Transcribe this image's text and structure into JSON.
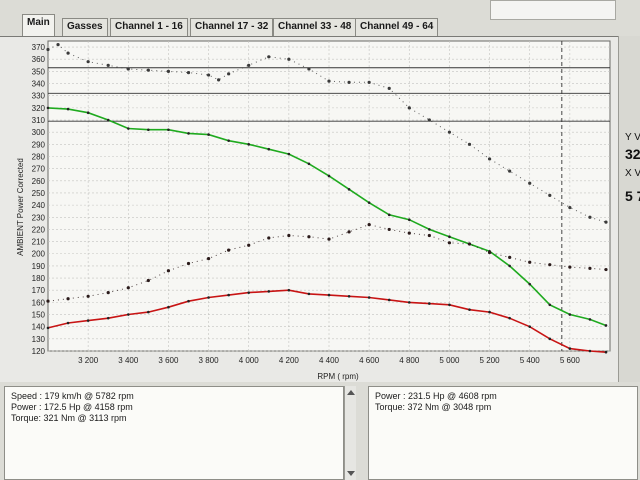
{
  "tabs": [
    {
      "label": "Main",
      "active": true
    },
    {
      "label": "Gasses",
      "active": false
    },
    {
      "label": "Channel 1 - 16",
      "active": false
    },
    {
      "label": "Channel 17 - 32",
      "active": false
    },
    {
      "label": "Channel 33 - 48",
      "active": false
    },
    {
      "label": "Channel 49 - 64",
      "active": false
    }
  ],
  "right_panel": {
    "y_label": "Y V",
    "y_value": "32",
    "x_label": "X V",
    "x_value": "5 7"
  },
  "info_left": [
    "Speed : 179 km/h @ 5782 rpm",
    "Power : 172.5 Hp @ 4158 rpm",
    "Torque: 321 Nm @ 3113 rpm"
  ],
  "info_right": [
    "Power : 231.5 Hp @ 4608 rpm",
    "Torque: 372 Nm @ 3048 rpm"
  ],
  "chart_data": {
    "type": "line",
    "xlabel": "RPM ( rpm)",
    "ylabel": "AMBIENT Power Corrected",
    "xlim": [
      3000,
      5800
    ],
    "ylim": [
      120,
      375
    ],
    "x_ticks": [
      "3 200",
      "3 400",
      "3 600",
      "3 800",
      "4 000",
      "4 200",
      "4 400",
      "4 600",
      "4 800",
      "5 000",
      "5 200",
      "5 400",
      "5 600"
    ],
    "x_tick_values": [
      3200,
      3400,
      3600,
      3800,
      4000,
      4200,
      4400,
      4600,
      4800,
      5000,
      5200,
      5400,
      5600
    ],
    "y_ticks": [
      "120",
      "130",
      "140",
      "150",
      "160",
      "170",
      "180",
      "190",
      "200",
      "210",
      "220",
      "230",
      "240",
      "250",
      "260",
      "270",
      "280",
      "290",
      "300",
      "310",
      "320",
      "330",
      "340",
      "350",
      "360",
      "370"
    ],
    "grid": true,
    "hlines": [
      353,
      332,
      309
    ],
    "vline": 5560,
    "series": [
      {
        "color": "#3a3a3a",
        "style": "dotted",
        "points": [
          [
            3000,
            368
          ],
          [
            3050,
            372
          ],
          [
            3100,
            365
          ],
          [
            3200,
            358
          ],
          [
            3300,
            355
          ],
          [
            3400,
            352
          ],
          [
            3500,
            351
          ],
          [
            3600,
            350
          ],
          [
            3700,
            349
          ],
          [
            3800,
            347
          ],
          [
            3850,
            343
          ],
          [
            3900,
            348
          ],
          [
            4000,
            355
          ],
          [
            4100,
            362
          ],
          [
            4200,
            360
          ],
          [
            4300,
            352
          ],
          [
            4400,
            342
          ],
          [
            4500,
            341
          ],
          [
            4600,
            341
          ],
          [
            4700,
            336
          ],
          [
            4800,
            320
          ],
          [
            4900,
            310
          ],
          [
            5000,
            300
          ],
          [
            5100,
            290
          ],
          [
            5200,
            278
          ],
          [
            5300,
            268
          ],
          [
            5400,
            258
          ],
          [
            5500,
            248
          ],
          [
            5600,
            238
          ],
          [
            5700,
            230
          ],
          [
            5780,
            226
          ]
        ]
      },
      {
        "color": "#1faa1f",
        "style": "solid",
        "points": [
          [
            3000,
            320
          ],
          [
            3100,
            319
          ],
          [
            3200,
            316
          ],
          [
            3300,
            310
          ],
          [
            3400,
            303
          ],
          [
            3500,
            302
          ],
          [
            3600,
            302
          ],
          [
            3700,
            299
          ],
          [
            3800,
            298
          ],
          [
            3900,
            293
          ],
          [
            4000,
            290
          ],
          [
            4100,
            286
          ],
          [
            4200,
            282
          ],
          [
            4300,
            274
          ],
          [
            4400,
            264
          ],
          [
            4500,
            253
          ],
          [
            4600,
            242
          ],
          [
            4700,
            232
          ],
          [
            4800,
            228
          ],
          [
            4900,
            220
          ],
          [
            5000,
            214
          ],
          [
            5100,
            208
          ],
          [
            5200,
            202
          ],
          [
            5300,
            190
          ],
          [
            5400,
            175
          ],
          [
            5500,
            158
          ],
          [
            5600,
            150
          ],
          [
            5700,
            146
          ],
          [
            5780,
            141
          ]
        ]
      },
      {
        "color": "#2a1a1a",
        "style": "dotted",
        "points": [
          [
            3000,
            161
          ],
          [
            3100,
            163
          ],
          [
            3200,
            165
          ],
          [
            3300,
            168
          ],
          [
            3400,
            172
          ],
          [
            3500,
            178
          ],
          [
            3600,
            186
          ],
          [
            3700,
            192
          ],
          [
            3800,
            196
          ],
          [
            3900,
            203
          ],
          [
            4000,
            207
          ],
          [
            4100,
            213
          ],
          [
            4200,
            215
          ],
          [
            4300,
            214
          ],
          [
            4400,
            212
          ],
          [
            4500,
            218
          ],
          [
            4600,
            224
          ],
          [
            4700,
            220
          ],
          [
            4800,
            217
          ],
          [
            4900,
            215
          ],
          [
            5000,
            209
          ],
          [
            5100,
            208
          ],
          [
            5200,
            201
          ],
          [
            5300,
            197
          ],
          [
            5400,
            193
          ],
          [
            5500,
            191
          ],
          [
            5600,
            189
          ],
          [
            5700,
            188
          ],
          [
            5780,
            187
          ]
        ]
      },
      {
        "color": "#c81414",
        "style": "solid",
        "points": [
          [
            3000,
            139
          ],
          [
            3100,
            143
          ],
          [
            3200,
            145
          ],
          [
            3300,
            147
          ],
          [
            3400,
            150
          ],
          [
            3500,
            152
          ],
          [
            3600,
            156
          ],
          [
            3700,
            161
          ],
          [
            3800,
            164
          ],
          [
            3900,
            166
          ],
          [
            4000,
            168
          ],
          [
            4100,
            169
          ],
          [
            4200,
            170
          ],
          [
            4300,
            167
          ],
          [
            4400,
            166
          ],
          [
            4500,
            165
          ],
          [
            4600,
            164
          ],
          [
            4700,
            162
          ],
          [
            4800,
            160
          ],
          [
            4900,
            159
          ],
          [
            5000,
            158
          ],
          [
            5100,
            154
          ],
          [
            5200,
            152
          ],
          [
            5300,
            147
          ],
          [
            5400,
            140
          ],
          [
            5500,
            130
          ],
          [
            5600,
            122
          ],
          [
            5700,
            120
          ],
          [
            5780,
            119
          ]
        ]
      }
    ]
  }
}
